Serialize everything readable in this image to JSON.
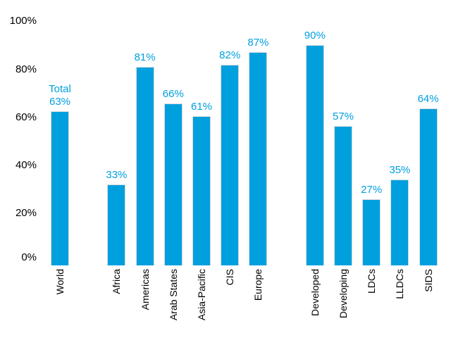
{
  "chart_data": {
    "type": "bar",
    "title": "",
    "xlabel": "",
    "ylabel": "",
    "ylim": [
      0,
      100
    ],
    "grid": false,
    "legend": false,
    "y_axis": {
      "tick_values": [
        0,
        20,
        40,
        60,
        80,
        100
      ],
      "tick_labels": [
        "0%",
        "20%",
        "40%",
        "60%",
        "80%",
        "100%"
      ]
    },
    "categories": [
      "World",
      "Africa",
      "Americas",
      "Arab States",
      "Asia-Pacific",
      "CIS",
      "Europe",
      "Developed",
      "Developing",
      "LDCs",
      "LLDCs",
      "SIDS"
    ],
    "values": [
      63,
      33,
      81,
      66,
      61,
      82,
      87,
      90,
      57,
      27,
      35,
      64
    ],
    "bars": [
      {
        "category": "World",
        "value": 63,
        "label": "Total\n63%",
        "slot": 0
      },
      {
        "category": "Africa",
        "value": 33,
        "label": "33%",
        "slot": 2
      },
      {
        "category": "Americas",
        "value": 81,
        "label": "81%",
        "slot": 3
      },
      {
        "category": "Arab States",
        "value": 66,
        "label": "66%",
        "slot": 4
      },
      {
        "category": "Asia-Pacific",
        "value": 61,
        "label": "61%",
        "slot": 5
      },
      {
        "category": "CIS",
        "value": 82,
        "label": "82%",
        "slot": 6
      },
      {
        "category": "Europe",
        "value": 87,
        "label": "87%",
        "slot": 7
      },
      {
        "category": "Developed",
        "value": 90,
        "label": "90%",
        "slot": 9
      },
      {
        "category": "Developing",
        "value": 57,
        "label": "57%",
        "slot": 10
      },
      {
        "category": "LDCs",
        "value": 27,
        "label": "27%",
        "slot": 11
      },
      {
        "category": "LLDCs",
        "value": 35,
        "label": "35%",
        "slot": 12
      },
      {
        "category": "SIDS",
        "value": 64,
        "label": "64%",
        "slot": 13
      }
    ],
    "colors": {
      "bar_fill": "#00A0DF",
      "bar_border": "#D9D9D9",
      "value_label": "#00A0DF",
      "axis_text": "#000000",
      "background": "#FFFFFF"
    }
  }
}
